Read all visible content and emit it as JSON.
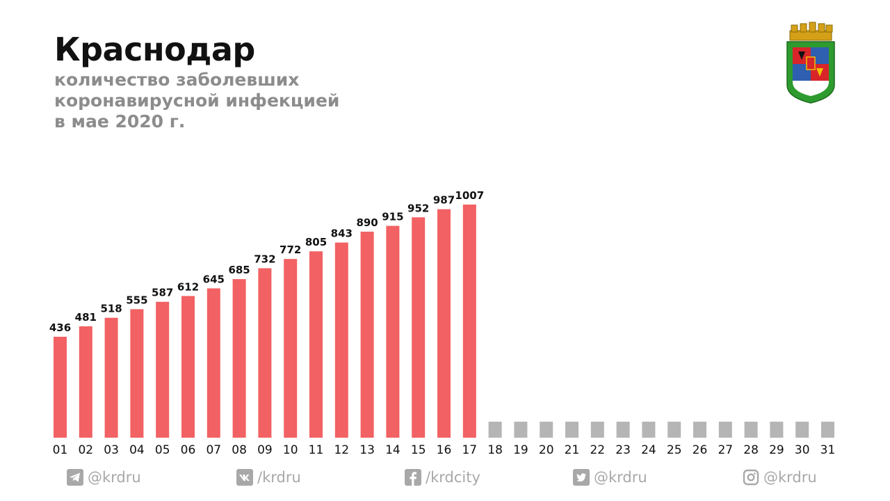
{
  "header": {
    "title": "Краснодар",
    "subtitle_lines": [
      "количество заболевших",
      "коронавирусной инфекцией",
      "в мае 2020 г."
    ]
  },
  "colors": {
    "bar": "#f26163",
    "placeholder": "#b5b5b5",
    "social": "#a8a8a8"
  },
  "chart_data": {
    "type": "bar",
    "title": "количество заболевших коронавирусной инфекцией в мае 2020 г.",
    "categories": [
      "01",
      "02",
      "03",
      "04",
      "05",
      "06",
      "07",
      "08",
      "09",
      "10",
      "11",
      "12",
      "13",
      "14",
      "15",
      "16",
      "17",
      "18",
      "19",
      "20",
      "21",
      "22",
      "23",
      "24",
      "25",
      "26",
      "27",
      "28",
      "29",
      "30",
      "31"
    ],
    "values": [
      436,
      481,
      518,
      555,
      587,
      612,
      645,
      685,
      732,
      772,
      805,
      843,
      890,
      915,
      952,
      987,
      1007,
      null,
      null,
      null,
      null,
      null,
      null,
      null,
      null,
      null,
      null,
      null,
      null,
      null,
      null
    ],
    "xlabel": "",
    "ylabel": "",
    "ylim": [
      0,
      1007
    ],
    "grid": false,
    "legend": "none"
  },
  "social": [
    {
      "icon": "telegram-icon",
      "label": "@krdru"
    },
    {
      "icon": "vk-icon",
      "label": "/krdru"
    },
    {
      "icon": "facebook-icon",
      "label": "/krdcity"
    },
    {
      "icon": "twitter-icon",
      "label": "@krdru"
    },
    {
      "icon": "instagram-icon",
      "label": "@krdru"
    }
  ]
}
